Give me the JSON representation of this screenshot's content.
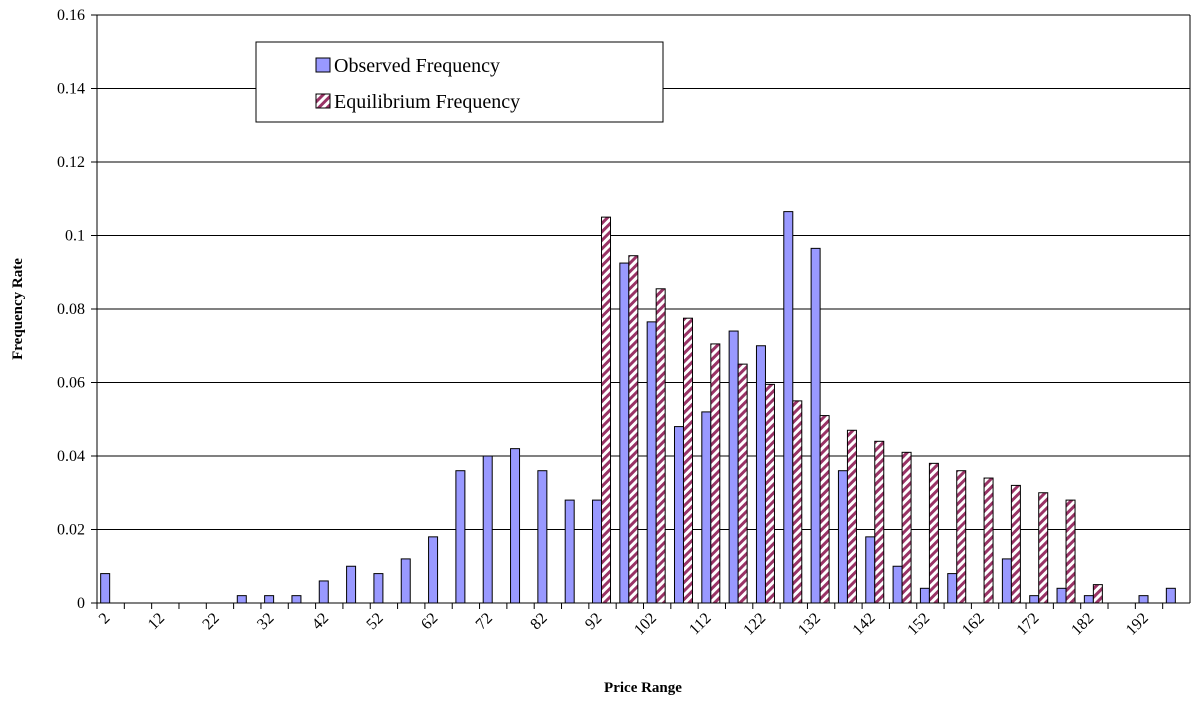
{
  "chart_data": {
    "type": "bar",
    "x_label": "Price Range",
    "y_label": "Frequency Rate",
    "categories": [
      "2",
      null,
      "12",
      null,
      "22",
      null,
      "32",
      null,
      "42",
      null,
      "52",
      null,
      "62",
      null,
      "72",
      null,
      "82",
      null,
      "92",
      null,
      "102",
      null,
      "112",
      null,
      "122",
      null,
      "132",
      null,
      "142",
      null,
      "152",
      null,
      "162",
      null,
      "172",
      null,
      "182",
      null,
      "192",
      null
    ],
    "series": [
      {
        "name": "Observed Frequency",
        "color": "#9999ff",
        "values": [
          0.008,
          0,
          0,
          0,
          0,
          0.002,
          0.002,
          0.002,
          0.006,
          0.01,
          0.008,
          0.012,
          0.018,
          0.036,
          0.04,
          0.042,
          0.036,
          0.028,
          0.028,
          0.0925,
          0.0765,
          0.048,
          0.052,
          0.074,
          0.07,
          0.1065,
          0.0965,
          0.036,
          0.018,
          0.01,
          0.004,
          0.008,
          0,
          0.012,
          0.002,
          0.004,
          0.002,
          0,
          0.002,
          0.004
        ]
      },
      {
        "name": "Equilibrium Frequency",
        "color": "#993366",
        "values": [
          0,
          0,
          0,
          0,
          0,
          0,
          0,
          0,
          0,
          0,
          0,
          0,
          0,
          0,
          0,
          0,
          0,
          0,
          0.105,
          0.0945,
          0.0855,
          0.0775,
          0.0705,
          0.065,
          0.0595,
          0.055,
          0.051,
          0.047,
          0.044,
          0.041,
          0.038,
          0.036,
          0.034,
          0.032,
          0.03,
          0.028,
          0.005,
          0,
          0,
          0
        ]
      }
    ],
    "ylim": [
      0,
      0.16
    ],
    "yticks": [
      0,
      0.02,
      0.04,
      0.06,
      0.08,
      0.1,
      0.12,
      0.14,
      0.16
    ],
    "grid": true
  }
}
